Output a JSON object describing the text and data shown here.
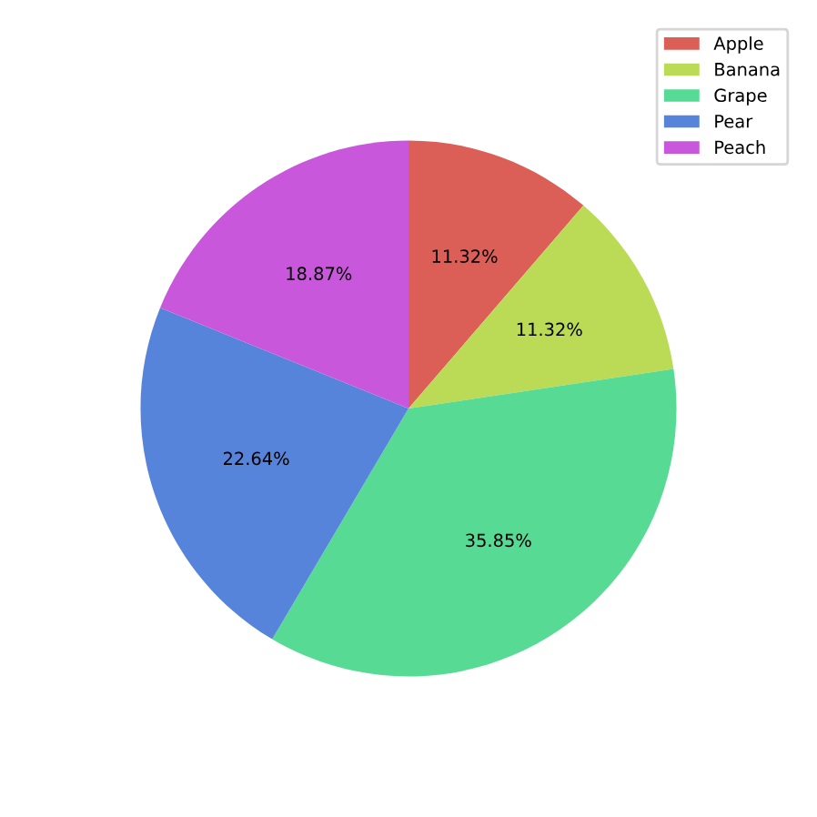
{
  "chart_data": {
    "type": "pie",
    "categories": [
      "Apple",
      "Banana",
      "Grape",
      "Pear",
      "Peach"
    ],
    "values": [
      11.32,
      11.32,
      35.85,
      22.64,
      18.87
    ],
    "value_labels": [
      "11.32%",
      "11.32%",
      "35.85%",
      "22.64%",
      "18.87%"
    ],
    "colors": [
      "#db5f57",
      "#bbdb57",
      "#57db94",
      "#5784db",
      "#c957db"
    ],
    "legend": "top right"
  }
}
